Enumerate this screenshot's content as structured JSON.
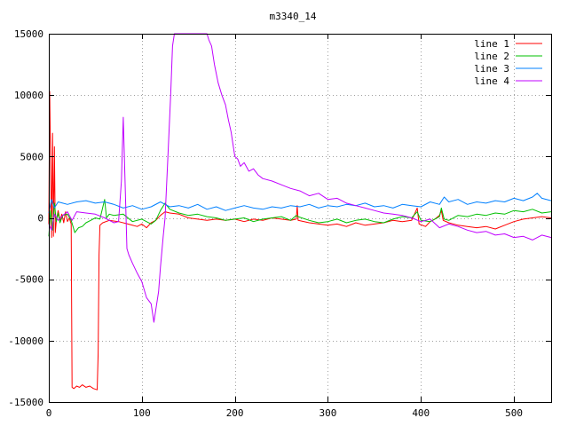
{
  "chart_data": {
    "type": "line",
    "title": "m3340_14",
    "xlabel": "",
    "ylabel": "",
    "xlim": [
      0,
      540
    ],
    "ylim": [
      -15000,
      15000
    ],
    "xticks": [
      0,
      100,
      200,
      300,
      400,
      500
    ],
    "yticks": [
      -15000,
      -10000,
      -5000,
      0,
      5000,
      10000,
      15000
    ],
    "grid": true,
    "legend_position": "top-right",
    "series": [
      {
        "name": "line 1",
        "color": "#ff0000",
        "points": [
          [
            0,
            -500
          ],
          [
            1,
            10300
          ],
          [
            2,
            4000
          ],
          [
            3,
            -1600
          ],
          [
            4,
            6900
          ],
          [
            5,
            -1500
          ],
          [
            6,
            5800
          ],
          [
            7,
            -1200
          ],
          [
            8,
            -300
          ],
          [
            10,
            600
          ],
          [
            12,
            -200
          ],
          [
            14,
            300
          ],
          [
            16,
            -400
          ],
          [
            18,
            500
          ],
          [
            20,
            -300
          ],
          [
            22,
            0
          ],
          [
            24,
            -500
          ],
          [
            25,
            -13800
          ],
          [
            27,
            -13900
          ],
          [
            30,
            -13700
          ],
          [
            33,
            -13800
          ],
          [
            36,
            -13600
          ],
          [
            40,
            -13800
          ],
          [
            44,
            -13700
          ],
          [
            48,
            -13900
          ],
          [
            52,
            -14000
          ],
          [
            53,
            -11000
          ],
          [
            54,
            -3000
          ],
          [
            55,
            -600
          ],
          [
            58,
            -400
          ],
          [
            65,
            -200
          ],
          [
            75,
            -300
          ],
          [
            85,
            -500
          ],
          [
            95,
            -700
          ],
          [
            100,
            -500
          ],
          [
            105,
            -800
          ],
          [
            110,
            -400
          ],
          [
            115,
            -200
          ],
          [
            120,
            200
          ],
          [
            125,
            500
          ],
          [
            130,
            400
          ],
          [
            140,
            300
          ],
          [
            150,
            0
          ],
          [
            160,
            -100
          ],
          [
            170,
            -200
          ],
          [
            180,
            -100
          ],
          [
            190,
            -200
          ],
          [
            200,
            -100
          ],
          [
            210,
            -300
          ],
          [
            220,
            -100
          ],
          [
            230,
            -200
          ],
          [
            240,
            0
          ],
          [
            250,
            -100
          ],
          [
            260,
            -200
          ],
          [
            266,
            -100
          ],
          [
            267,
            1000
          ],
          [
            268,
            -200
          ],
          [
            280,
            -400
          ],
          [
            290,
            -500
          ],
          [
            300,
            -600
          ],
          [
            310,
            -500
          ],
          [
            320,
            -700
          ],
          [
            330,
            -400
          ],
          [
            340,
            -600
          ],
          [
            350,
            -500
          ],
          [
            360,
            -400
          ],
          [
            370,
            -200
          ],
          [
            380,
            -300
          ],
          [
            390,
            -200
          ],
          [
            396,
            800
          ],
          [
            398,
            -500
          ],
          [
            405,
            -700
          ],
          [
            410,
            -300
          ],
          [
            415,
            -100
          ],
          [
            420,
            200
          ],
          [
            422,
            600
          ],
          [
            424,
            -200
          ],
          [
            430,
            -400
          ],
          [
            440,
            -600
          ],
          [
            450,
            -700
          ],
          [
            460,
            -800
          ],
          [
            470,
            -700
          ],
          [
            480,
            -900
          ],
          [
            490,
            -600
          ],
          [
            500,
            -300
          ],
          [
            510,
            -100
          ],
          [
            520,
            0
          ],
          [
            530,
            100
          ],
          [
            540,
            0
          ]
        ]
      },
      {
        "name": "line 2",
        "color": "#00c000",
        "points": [
          [
            0,
            -1500
          ],
          [
            2,
            600
          ],
          [
            4,
            -1000
          ],
          [
            6,
            1200
          ],
          [
            8,
            -300
          ],
          [
            10,
            400
          ],
          [
            12,
            -400
          ],
          [
            15,
            200
          ],
          [
            20,
            300
          ],
          [
            24,
            -200
          ],
          [
            28,
            -1200
          ],
          [
            32,
            -800
          ],
          [
            36,
            -700
          ],
          [
            40,
            -400
          ],
          [
            45,
            -200
          ],
          [
            50,
            0
          ],
          [
            55,
            -100
          ],
          [
            60,
            1500
          ],
          [
            62,
            0
          ],
          [
            65,
            300
          ],
          [
            70,
            200
          ],
          [
            80,
            300
          ],
          [
            90,
            -300
          ],
          [
            100,
            -100
          ],
          [
            110,
            -500
          ],
          [
            115,
            -200
          ],
          [
            120,
            600
          ],
          [
            125,
            1200
          ],
          [
            130,
            700
          ],
          [
            140,
            400
          ],
          [
            150,
            200
          ],
          [
            160,
            300
          ],
          [
            170,
            100
          ],
          [
            180,
            0
          ],
          [
            190,
            -200
          ],
          [
            200,
            -100
          ],
          [
            210,
            0
          ],
          [
            220,
            -300
          ],
          [
            230,
            -100
          ],
          [
            240,
            0
          ],
          [
            250,
            100
          ],
          [
            260,
            -200
          ],
          [
            266,
            200
          ],
          [
            268,
            100
          ],
          [
            280,
            -200
          ],
          [
            290,
            -400
          ],
          [
            300,
            -300
          ],
          [
            310,
            -100
          ],
          [
            320,
            -400
          ],
          [
            330,
            -200
          ],
          [
            340,
            -100
          ],
          [
            350,
            -300
          ],
          [
            360,
            -400
          ],
          [
            370,
            -100
          ],
          [
            380,
            100
          ],
          [
            390,
            0
          ],
          [
            396,
            500
          ],
          [
            400,
            -200
          ],
          [
            410,
            -300
          ],
          [
            420,
            100
          ],
          [
            422,
            800
          ],
          [
            425,
            -100
          ],
          [
            430,
            -200
          ],
          [
            440,
            200
          ],
          [
            450,
            100
          ],
          [
            460,
            300
          ],
          [
            470,
            200
          ],
          [
            480,
            400
          ],
          [
            490,
            300
          ],
          [
            500,
            600
          ],
          [
            510,
            500
          ],
          [
            520,
            700
          ],
          [
            530,
            400
          ],
          [
            540,
            500
          ]
        ]
      },
      {
        "name": "line 3",
        "color": "#0080ff",
        "points": [
          [
            0,
            400
          ],
          [
            3,
            1500
          ],
          [
            6,
            800
          ],
          [
            10,
            1300
          ],
          [
            15,
            1200
          ],
          [
            20,
            1100
          ],
          [
            30,
            1300
          ],
          [
            40,
            1400
          ],
          [
            50,
            1200
          ],
          [
            60,
            1300
          ],
          [
            70,
            1100
          ],
          [
            80,
            800
          ],
          [
            90,
            1000
          ],
          [
            100,
            700
          ],
          [
            110,
            900
          ],
          [
            120,
            1300
          ],
          [
            125,
            1100
          ],
          [
            130,
            900
          ],
          [
            140,
            1000
          ],
          [
            150,
            800
          ],
          [
            160,
            1100
          ],
          [
            170,
            700
          ],
          [
            180,
            900
          ],
          [
            190,
            600
          ],
          [
            200,
            800
          ],
          [
            210,
            1000
          ],
          [
            220,
            800
          ],
          [
            230,
            700
          ],
          [
            240,
            900
          ],
          [
            250,
            800
          ],
          [
            260,
            1000
          ],
          [
            270,
            900
          ],
          [
            280,
            1100
          ],
          [
            290,
            800
          ],
          [
            300,
            1000
          ],
          [
            310,
            900
          ],
          [
            320,
            1100
          ],
          [
            330,
            1000
          ],
          [
            340,
            1200
          ],
          [
            350,
            900
          ],
          [
            360,
            1000
          ],
          [
            370,
            800
          ],
          [
            380,
            1100
          ],
          [
            390,
            1000
          ],
          [
            400,
            900
          ],
          [
            410,
            1300
          ],
          [
            420,
            1100
          ],
          [
            425,
            1700
          ],
          [
            430,
            1300
          ],
          [
            440,
            1500
          ],
          [
            450,
            1100
          ],
          [
            460,
            1300
          ],
          [
            470,
            1200
          ],
          [
            480,
            1400
          ],
          [
            490,
            1300
          ],
          [
            500,
            1600
          ],
          [
            510,
            1400
          ],
          [
            520,
            1700
          ],
          [
            525,
            2000
          ],
          [
            530,
            1600
          ],
          [
            540,
            1400
          ]
        ]
      },
      {
        "name": "line 4",
        "color": "#c000ff",
        "points": [
          [
            0,
            -500
          ],
          [
            3,
            -1000
          ],
          [
            6,
            300
          ],
          [
            10,
            -200
          ],
          [
            15,
            200
          ],
          [
            20,
            500
          ],
          [
            25,
            -200
          ],
          [
            30,
            500
          ],
          [
            40,
            400
          ],
          [
            50,
            300
          ],
          [
            60,
            0
          ],
          [
            70,
            -400
          ],
          [
            75,
            -300
          ],
          [
            78,
            3000
          ],
          [
            80,
            8200
          ],
          [
            82,
            3000
          ],
          [
            84,
            -2500
          ],
          [
            86,
            -3000
          ],
          [
            90,
            -3700
          ],
          [
            95,
            -4500
          ],
          [
            100,
            -5200
          ],
          [
            105,
            -6500
          ],
          [
            110,
            -7000
          ],
          [
            113,
            -8500
          ],
          [
            115,
            -7500
          ],
          [
            118,
            -6000
          ],
          [
            120,
            -4000
          ],
          [
            123,
            -1500
          ],
          [
            125,
            0
          ],
          [
            128,
            5000
          ],
          [
            131,
            10000
          ],
          [
            133,
            14000
          ],
          [
            135,
            15000
          ],
          [
            170,
            15000
          ],
          [
            172,
            14500
          ],
          [
            175,
            14000
          ],
          [
            178,
            12500
          ],
          [
            182,
            11000
          ],
          [
            186,
            10000
          ],
          [
            190,
            9200
          ],
          [
            193,
            8000
          ],
          [
            196,
            7000
          ],
          [
            198,
            6000
          ],
          [
            200,
            5000
          ],
          [
            203,
            4800
          ],
          [
            206,
            4200
          ],
          [
            210,
            4500
          ],
          [
            215,
            3800
          ],
          [
            220,
            4000
          ],
          [
            225,
            3500
          ],
          [
            230,
            3200
          ],
          [
            240,
            3000
          ],
          [
            250,
            2700
          ],
          [
            260,
            2400
          ],
          [
            270,
            2200
          ],
          [
            280,
            1800
          ],
          [
            290,
            2000
          ],
          [
            300,
            1500
          ],
          [
            310,
            1600
          ],
          [
            320,
            1200
          ],
          [
            330,
            1000
          ],
          [
            340,
            800
          ],
          [
            350,
            600
          ],
          [
            360,
            400
          ],
          [
            370,
            300
          ],
          [
            380,
            200
          ],
          [
            390,
            0
          ],
          [
            400,
            -300
          ],
          [
            410,
            -100
          ],
          [
            420,
            -800
          ],
          [
            430,
            -500
          ],
          [
            440,
            -700
          ],
          [
            450,
            -1000
          ],
          [
            460,
            -1200
          ],
          [
            470,
            -1100
          ],
          [
            480,
            -1400
          ],
          [
            490,
            -1300
          ],
          [
            500,
            -1600
          ],
          [
            510,
            -1500
          ],
          [
            520,
            -1800
          ],
          [
            530,
            -1400
          ],
          [
            540,
            -1600
          ]
        ]
      }
    ]
  }
}
